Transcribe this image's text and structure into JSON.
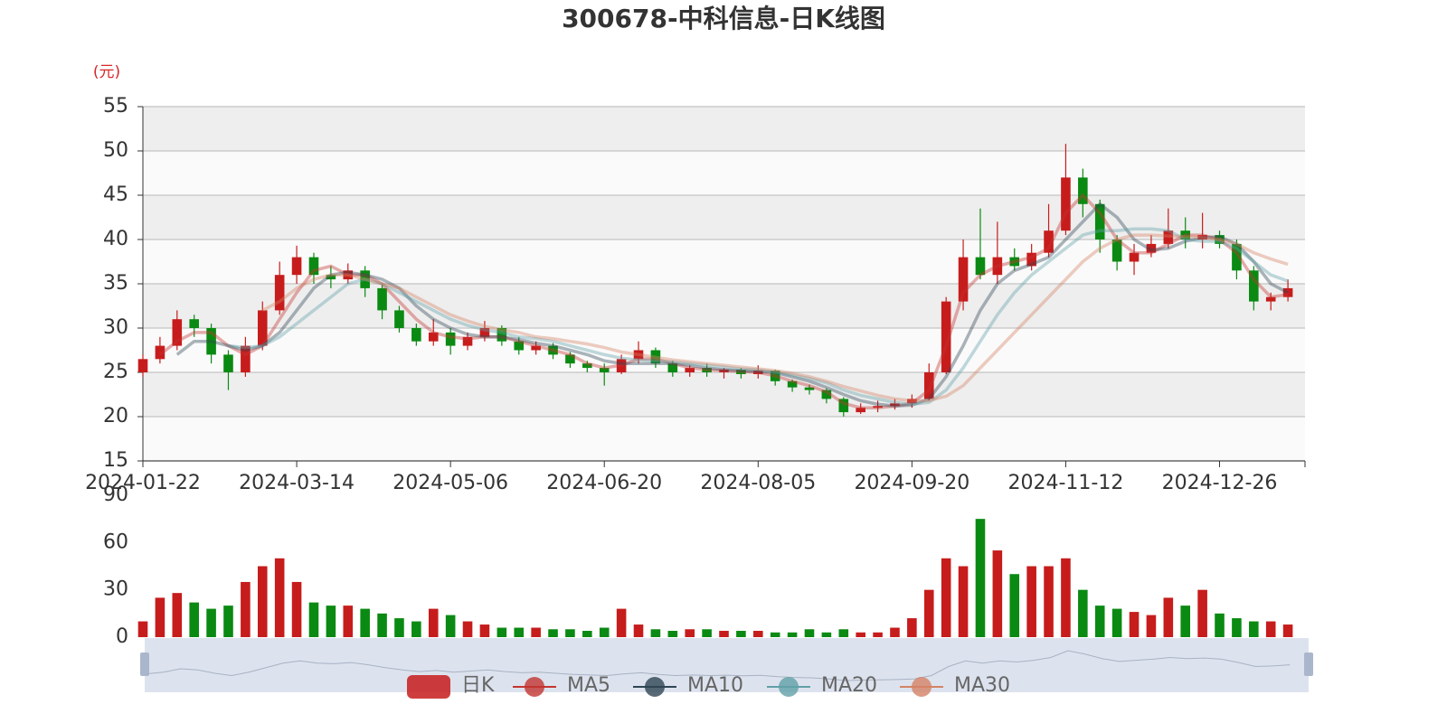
{
  "chart_data": {
    "type": "candlestick",
    "title": "300678-中科信息-日K线图",
    "y_unit": "(元)",
    "candle_name": "日K",
    "up_color": "#c71c1c",
    "down_color": "#0a8a12",
    "grid": true,
    "ylim": [
      15,
      55
    ],
    "yticks": [
      15,
      20,
      25,
      30,
      35,
      40,
      45,
      50,
      55
    ],
    "volume_ylim": [
      0,
      90
    ],
    "volume_yticks": [
      0,
      30,
      60,
      90
    ],
    "categories": [
      "2024-01-22",
      null,
      null,
      null,
      null,
      null,
      null,
      null,
      null,
      "2024-03-14",
      null,
      null,
      null,
      null,
      null,
      null,
      null,
      null,
      "2024-05-06",
      null,
      null,
      null,
      null,
      null,
      null,
      null,
      null,
      "2024-06-20",
      null,
      null,
      null,
      null,
      null,
      null,
      null,
      null,
      "2024-08-05",
      null,
      null,
      null,
      null,
      null,
      null,
      null,
      null,
      "2024-09-20",
      null,
      null,
      null,
      null,
      null,
      null,
      null,
      null,
      "2024-11-12",
      null,
      null,
      null,
      null,
      null,
      null,
      null,
      null,
      "2024-12-26",
      null,
      null,
      null,
      null
    ],
    "candles": [
      [
        25,
        26.5,
        24.5,
        27
      ],
      [
        26.5,
        28,
        26,
        29
      ],
      [
        28,
        31,
        27.5,
        32
      ],
      [
        31,
        30,
        29,
        31.5
      ],
      [
        30,
        27,
        26,
        30.5
      ],
      [
        27,
        25,
        23,
        27.5
      ],
      [
        25,
        28,
        24.5,
        29
      ],
      [
        28,
        32,
        27.5,
        33
      ],
      [
        32,
        36,
        31.5,
        37.5
      ],
      [
        36,
        38,
        35,
        39.3
      ],
      [
        38,
        36,
        35,
        38.5
      ],
      [
        36,
        35.5,
        34.5,
        37
      ],
      [
        35.5,
        36.5,
        35,
        37.3
      ],
      [
        36.5,
        34.5,
        33.5,
        37
      ],
      [
        34.5,
        32,
        31,
        35
      ],
      [
        32,
        30,
        29.5,
        32.5
      ],
      [
        30,
        28.5,
        28,
        30.5
      ],
      [
        28.5,
        29.5,
        28,
        31
      ],
      [
        29.5,
        28,
        27,
        30
      ],
      [
        28,
        29,
        27.5,
        29.5
      ],
      [
        29,
        30,
        28.5,
        30.8
      ],
      [
        30,
        28.5,
        28,
        30.3
      ],
      [
        28.5,
        27.5,
        27,
        29
      ],
      [
        27.5,
        28,
        27,
        28.5
      ],
      [
        28,
        27,
        26.5,
        28.3
      ],
      [
        27,
        26,
        25.5,
        27.3
      ],
      [
        26,
        25.5,
        25,
        26.3
      ],
      [
        25.5,
        25,
        23.5,
        26
      ],
      [
        25,
        26.5,
        24.8,
        27
      ],
      [
        26.5,
        27.5,
        26,
        28.5
      ],
      [
        27.5,
        26,
        25.5,
        27.8
      ],
      [
        26,
        25,
        24.5,
        26.3
      ],
      [
        25,
        25.5,
        24.5,
        25.8
      ],
      [
        25.5,
        25,
        24.5,
        26
      ],
      [
        25,
        25.3,
        24.3,
        25.5
      ],
      [
        25.3,
        24.8,
        24.3,
        25.5
      ],
      [
        24.8,
        25.2,
        24.3,
        25.8
      ],
      [
        25.2,
        24,
        23.5,
        25.3
      ],
      [
        24,
        23.3,
        22.8,
        24.2
      ],
      [
        23.3,
        23,
        22.5,
        23.6
      ],
      [
        23,
        22,
        21.5,
        23.2
      ],
      [
        22,
        20.5,
        20,
        22.2
      ],
      [
        20.5,
        21,
        20.3,
        21.5
      ],
      [
        21,
        21.2,
        20.5,
        21.8
      ],
      [
        21.2,
        21.5,
        20.8,
        22
      ],
      [
        21.5,
        22,
        21,
        22.5
      ],
      [
        22,
        25,
        21.8,
        26
      ],
      [
        25,
        33,
        24.8,
        33.5
      ],
      [
        33,
        38,
        32,
        40
      ],
      [
        38,
        36,
        35.5,
        43.5
      ],
      [
        36,
        38,
        35,
        42
      ],
      [
        38,
        37,
        36.5,
        39
      ],
      [
        37,
        38.5,
        36.5,
        39.5
      ],
      [
        38.5,
        41,
        38,
        44
      ],
      [
        41,
        47,
        40.5,
        50.8
      ],
      [
        47,
        44,
        42.5,
        48
      ],
      [
        44,
        40,
        38.5,
        44.5
      ],
      [
        40,
        37.5,
        36.5,
        40.5
      ],
      [
        37.5,
        38.5,
        36,
        39.5
      ],
      [
        38.5,
        39.5,
        38,
        40.5
      ],
      [
        39.5,
        41,
        39,
        43.5
      ],
      [
        41,
        40,
        39,
        42.5
      ],
      [
        40,
        40.5,
        39,
        43
      ],
      [
        40.5,
        39.5,
        39,
        41
      ],
      [
        39.5,
        36.5,
        35.5,
        40
      ],
      [
        36.5,
        33,
        32,
        37
      ],
      [
        33,
        33.5,
        32,
        34
      ],
      [
        33.5,
        34.5,
        33,
        35.5
      ]
    ],
    "volume": [
      10,
      25,
      28,
      22,
      18,
      20,
      35,
      45,
      50,
      35,
      22,
      20,
      20,
      18,
      15,
      12,
      10,
      18,
      14,
      10,
      8,
      6,
      6,
      6,
      5,
      5,
      4,
      6,
      18,
      8,
      5,
      4,
      5,
      5,
      4,
      4,
      4,
      3,
      3,
      5,
      3,
      5,
      3,
      3,
      6,
      12,
      30,
      50,
      45,
      75,
      55,
      40,
      45,
      45,
      50,
      30,
      20,
      18,
      16,
      14,
      25,
      20,
      30,
      15,
      12,
      10,
      10,
      8
    ],
    "series": [
      {
        "name": "MA5",
        "color": "#c23531",
        "values": [
          null,
          27,
          28.5,
          29.5,
          29.5,
          28,
          27,
          28,
          31,
          34,
          36.5,
          37,
          36,
          36,
          35,
          33,
          31,
          29.5,
          29,
          28.8,
          29,
          29,
          28.5,
          28,
          27.5,
          27,
          26,
          25.5,
          25.8,
          26.5,
          26.5,
          26,
          25.5,
          25.3,
          25.2,
          25.1,
          25,
          24.6,
          24,
          23.5,
          22.8,
          21.5,
          21,
          21,
          21.2,
          21.5,
          23,
          28,
          34,
          36,
          37,
          37.5,
          38,
          39,
          43,
          45,
          43,
          40,
          38.5,
          38.5,
          39.5,
          40.5,
          40.5,
          40,
          38.5,
          35.5,
          33.5,
          33.8
        ]
      },
      {
        "name": "MA10",
        "color": "#2f4554",
        "values": [
          null,
          null,
          27,
          28.5,
          28.5,
          28,
          27.5,
          28,
          29.5,
          32,
          34.5,
          36,
          36.3,
          36,
          35.5,
          34.5,
          32.5,
          31,
          30,
          29.3,
          29,
          29,
          28.7,
          28.3,
          28,
          27.5,
          27,
          26.3,
          26,
          26,
          26,
          26,
          25.8,
          25.5,
          25.3,
          25.2,
          25.1,
          25,
          24.5,
          24,
          23.3,
          22.5,
          21.8,
          21.4,
          21.2,
          21.3,
          22,
          24.5,
          28,
          32,
          35,
          36.5,
          37.2,
          38,
          40,
          42,
          44,
          42.5,
          40,
          38.8,
          39,
          39.8,
          40.2,
          40.3,
          39.5,
          37.5,
          35,
          34
        ]
      },
      {
        "name": "MA20",
        "color": "#61a0a8",
        "values": [
          null,
          null,
          null,
          null,
          null,
          28,
          27.8,
          28,
          29,
          30.5,
          32,
          33.5,
          35,
          35.5,
          35,
          34,
          33,
          32,
          31,
          30.3,
          29.8,
          29.5,
          29,
          28.8,
          28.5,
          28,
          27.5,
          27,
          26.6,
          26.4,
          26.3,
          26.2,
          26,
          25.8,
          25.6,
          25.4,
          25.3,
          25,
          24.7,
          24.3,
          23.8,
          23,
          22.4,
          22,
          21.6,
          21.4,
          21.6,
          23,
          25.5,
          28.5,
          31.5,
          34,
          36,
          37.5,
          39,
          40.5,
          41,
          41,
          41.2,
          41.2,
          41,
          40,
          39.8,
          39.8,
          39,
          37.5,
          36,
          35.3
        ]
      },
      {
        "name": "MA30",
        "color": "#d48265",
        "values": [
          null,
          null,
          null,
          null,
          null,
          null,
          null,
          32,
          33,
          34.5,
          35.5,
          36,
          36,
          35.5,
          35,
          34.5,
          33.5,
          32.5,
          31.5,
          30.8,
          30.2,
          29.8,
          29.5,
          29,
          28.8,
          28.5,
          28.2,
          27.8,
          27.3,
          27,
          26.7,
          26.4,
          26.2,
          26,
          25.8,
          25.6,
          25.4,
          25.2,
          24.9,
          24.5,
          24,
          23.4,
          22.9,
          22.4,
          22,
          21.8,
          21.8,
          22.3,
          23.5,
          25.5,
          27.5,
          29.5,
          31.5,
          33.5,
          35.5,
          37.5,
          39,
          40,
          40.5,
          40.5,
          40.4,
          40.3,
          40.2,
          40,
          39.5,
          38.5,
          37.8,
          37.2
        ]
      }
    ]
  }
}
